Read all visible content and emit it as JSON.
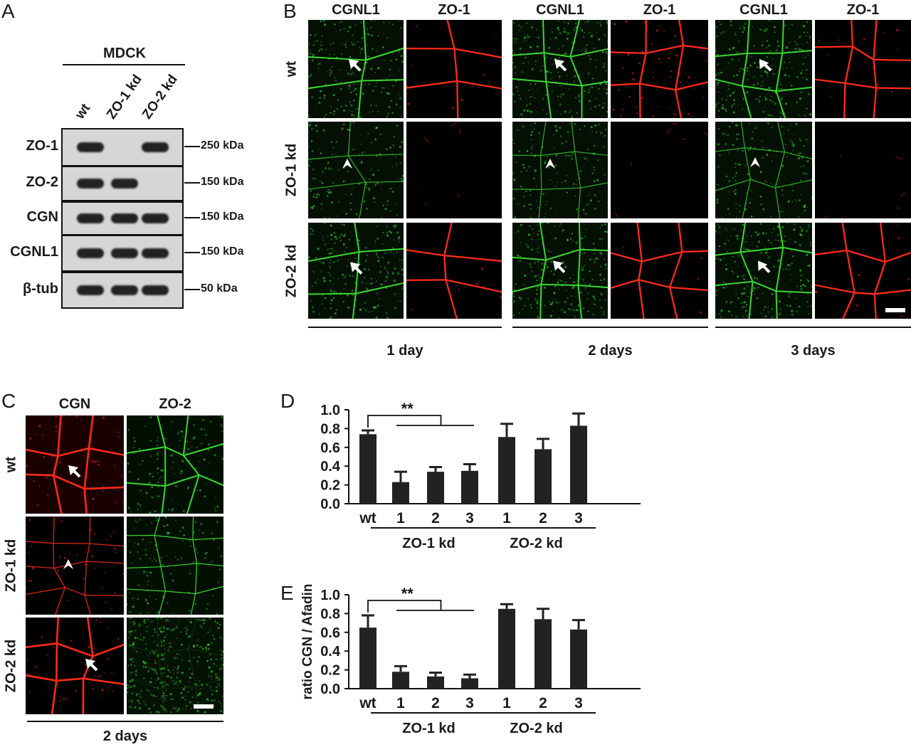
{
  "panel_labels": {
    "a": "A",
    "b": "B",
    "c": "C",
    "d": "D",
    "e": "E"
  },
  "panel_a": {
    "cell_line": "MDCK",
    "lanes": [
      "wt",
      "ZO-1 kd",
      "ZO-2 kd"
    ],
    "proteins": [
      {
        "name": "ZO-1",
        "marker": "250 kDa",
        "bands": [
          1,
          0,
          1
        ]
      },
      {
        "name": "ZO-2",
        "marker": "150 kDa",
        "bands": [
          1,
          1,
          0
        ]
      },
      {
        "name": "CGN",
        "marker": "150 kDa",
        "bands": [
          1,
          1,
          1
        ]
      },
      {
        "name": "CGNL1",
        "marker": "150 kDa",
        "bands": [
          1,
          1,
          1
        ]
      },
      {
        "name": "β-tub",
        "marker": "50 kDa",
        "bands": [
          1,
          1,
          1
        ]
      }
    ]
  },
  "panel_b": {
    "column_headers": [
      "CGNL1",
      "ZO-1",
      "CGNL1",
      "ZO-1",
      "CGNL1",
      "ZO-1"
    ],
    "row_labels": [
      "wt",
      "ZO-1 kd",
      "ZO-2 kd"
    ],
    "timepoints": [
      "1 day",
      "2 days",
      "3 days"
    ],
    "stain_colors": {
      "green": "#39d630",
      "red": "#ff2a1a"
    }
  },
  "panel_c": {
    "column_headers": [
      "CGN",
      "ZO-2"
    ],
    "row_labels": [
      "wt",
      "ZO-1 kd",
      "ZO-2 kd"
    ],
    "timepoint": "2 days"
  },
  "chart_data": [
    {
      "panel": "D",
      "type": "bar",
      "categories": [
        "wt",
        "1",
        "2",
        "3",
        "1",
        "2",
        "3"
      ],
      "groups": [
        {
          "name": "ZO-1 kd",
          "members": [
            1,
            2,
            3
          ]
        },
        {
          "name": "ZO-2 kd",
          "members": [
            4,
            5,
            6
          ]
        }
      ],
      "values": [
        0.74,
        0.23,
        0.34,
        0.35,
        0.71,
        0.58,
        0.83
      ],
      "errors": [
        0.04,
        0.11,
        0.05,
        0.07,
        0.14,
        0.11,
        0.13
      ],
      "significance": "**",
      "ylabel": "",
      "ylim": [
        0,
        1.0
      ],
      "yticks": [
        "0.0",
        "0.2",
        "0.4",
        "0.6",
        "0.8",
        "1.0"
      ]
    },
    {
      "panel": "E",
      "type": "bar",
      "categories": [
        "wt",
        "1",
        "2",
        "3",
        "1",
        "2",
        "3"
      ],
      "groups": [
        {
          "name": "ZO-1 kd",
          "members": [
            1,
            2,
            3
          ]
        },
        {
          "name": "ZO-2 kd",
          "members": [
            4,
            5,
            6
          ]
        }
      ],
      "values": [
        0.65,
        0.18,
        0.13,
        0.11,
        0.85,
        0.74,
        0.63
      ],
      "errors": [
        0.13,
        0.06,
        0.04,
        0.04,
        0.05,
        0.11,
        0.1
      ],
      "significance": "**",
      "ylabel": "ratio CGN / Afadin",
      "ylim": [
        0,
        1.0
      ],
      "yticks": [
        "0.0",
        "0.2",
        "0.4",
        "0.6",
        "0.8",
        "1.0"
      ]
    }
  ]
}
